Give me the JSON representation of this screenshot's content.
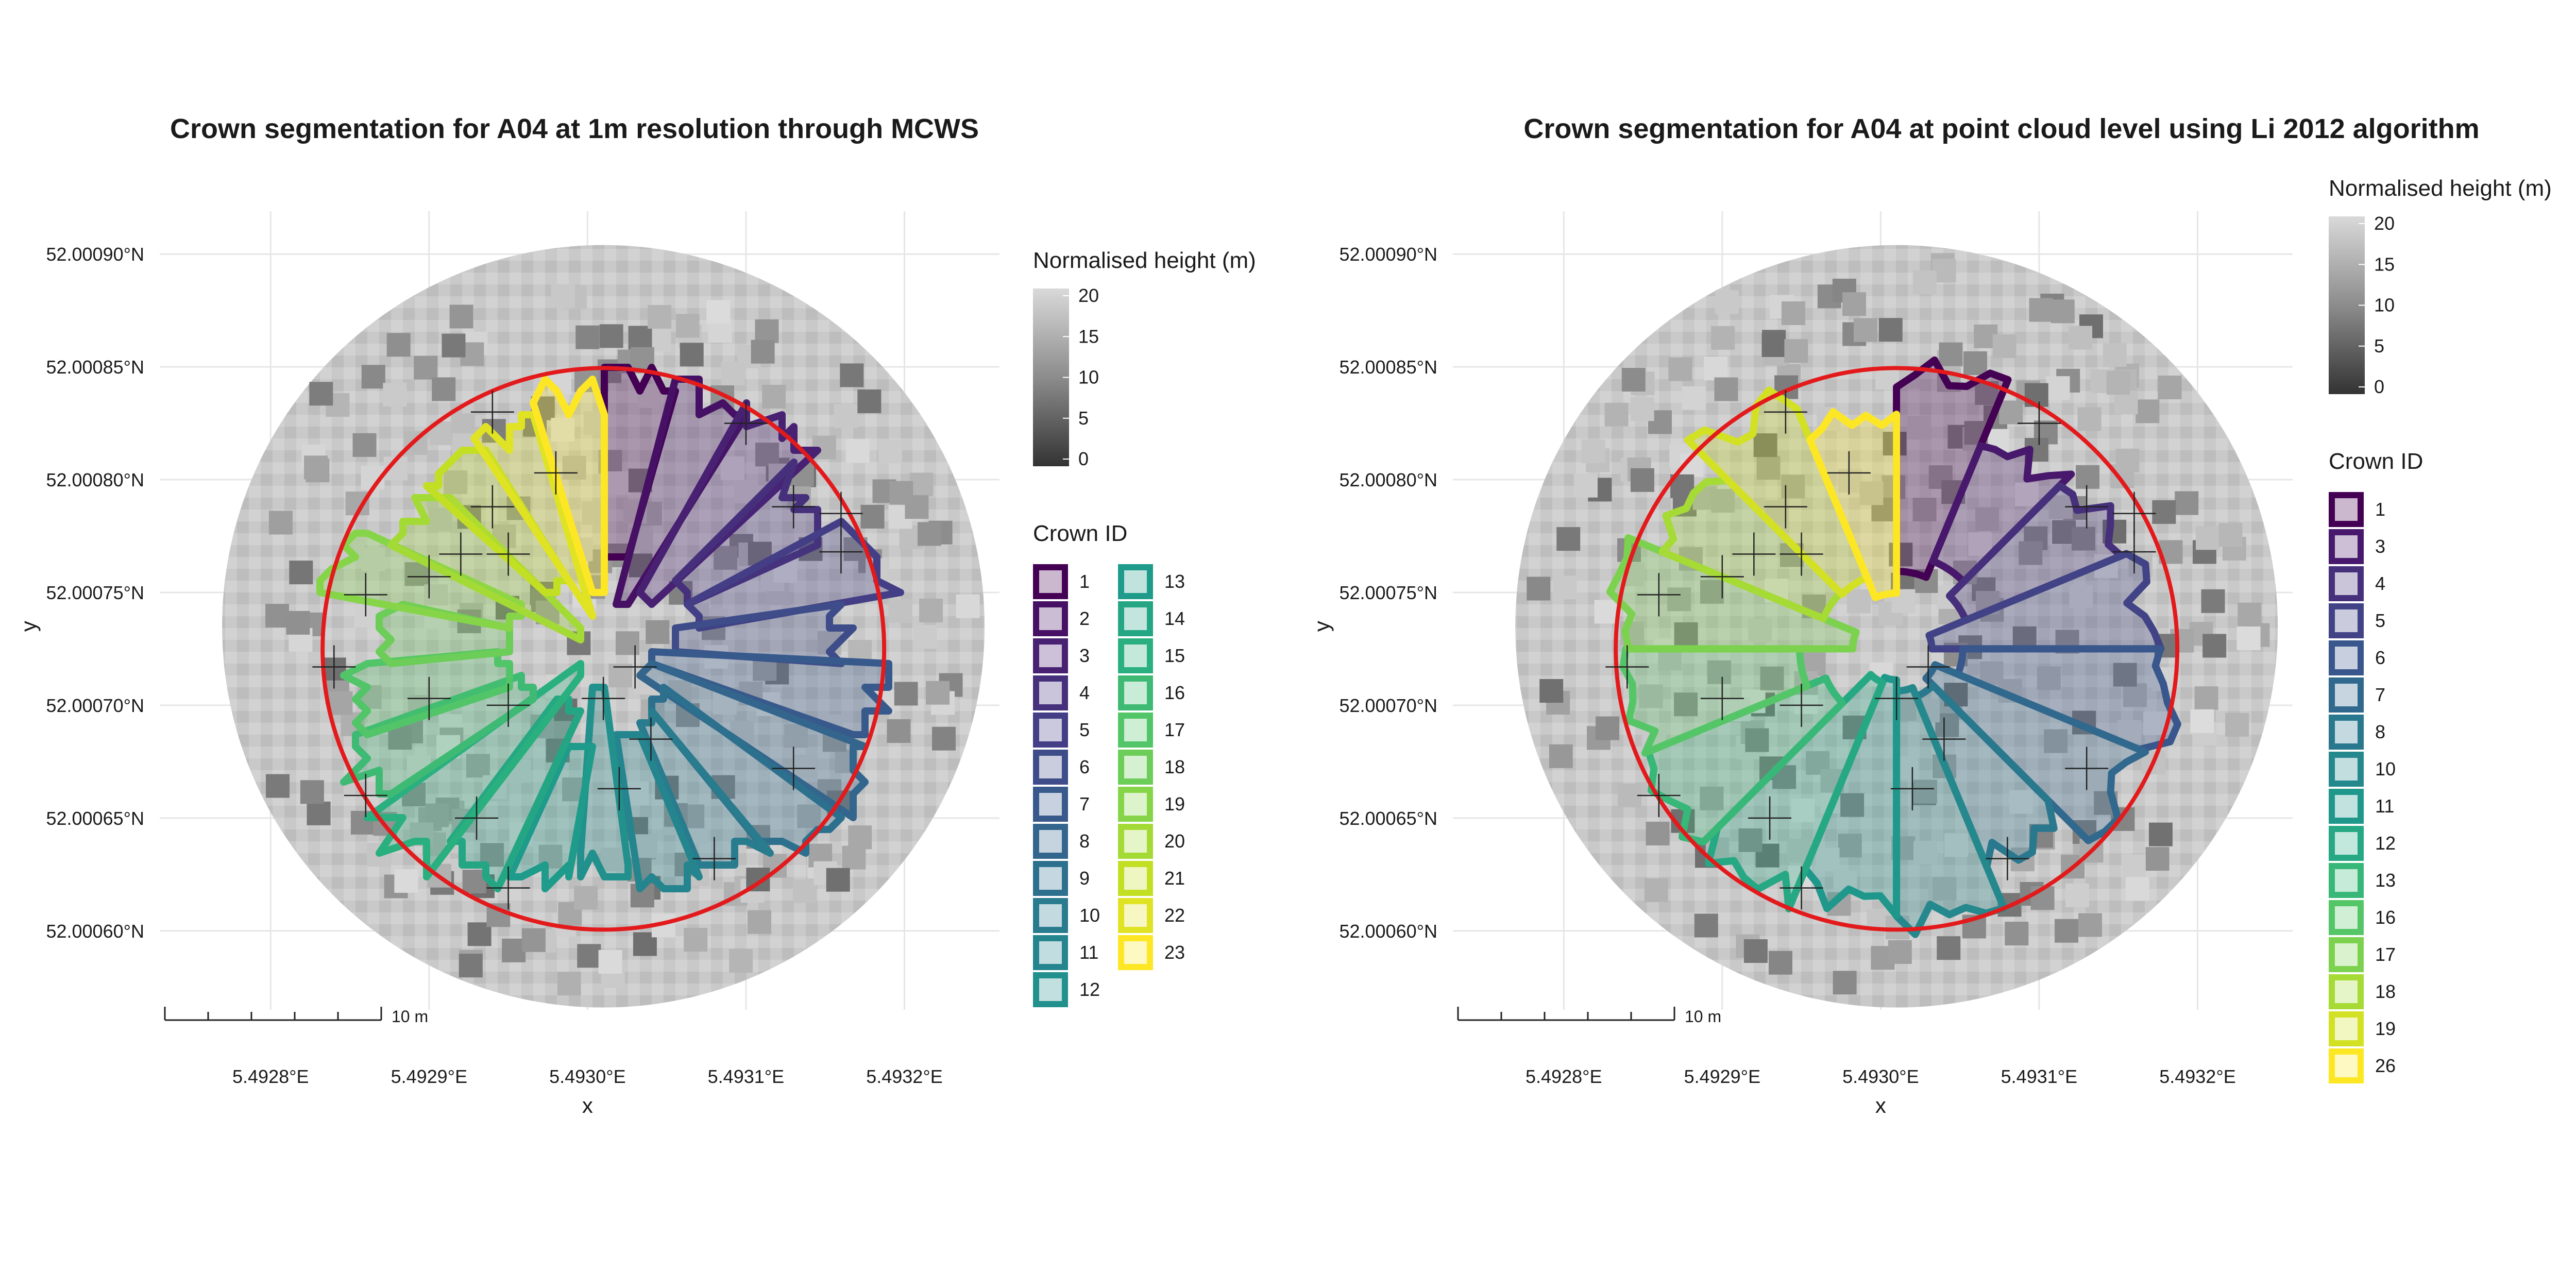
{
  "colors": {
    "background": "#ffffff",
    "gridline": "#e6e6e6",
    "plot_circle": "#e31a1c",
    "crosshair": "#222222",
    "text": "#1a1a1a"
  },
  "chart_data": [
    {
      "type": "map",
      "title": "Crown segmentation for A04 at 1m resolution through MCWS",
      "xlabel": "x",
      "ylabel": "y",
      "x_ticks": [
        "5.4928°E",
        "5.4929°E",
        "5.4930°E",
        "5.4931°E",
        "5.4932°E"
      ],
      "y_ticks": [
        "52.00060°N",
        "52.00065°N",
        "52.00070°N",
        "52.00075°N",
        "52.00080°N",
        "52.00085°N",
        "52.00090°N"
      ],
      "xlim": [
        5.49273,
        5.49326
      ],
      "ylim": [
        52.000565,
        52.000919
      ],
      "scale_bar_label": "10 m",
      "height_legend": {
        "title": "Normalised height (m)",
        "ticks": [
          "20",
          "15",
          "10",
          "5",
          "0"
        ],
        "range": [
          0,
          20
        ]
      },
      "crown_legend": {
        "title": "Crown ID",
        "ids": [
          "1",
          "2",
          "3",
          "4",
          "5",
          "6",
          "7",
          "8",
          "9",
          "10",
          "11",
          "12",
          "13",
          "14",
          "15",
          "16",
          "17",
          "18",
          "19",
          "20",
          "21",
          "22",
          "23"
        ]
      },
      "plot_circle": {
        "center": [
          5.49301,
          52.000725
        ],
        "radius_m": 12.62
      },
      "tree_tops": [
        [
          5.49294,
          52.00083
        ],
        [
          5.4931,
          52.000825
        ],
        [
          5.49298,
          52.000803
        ],
        [
          5.49294,
          52.000788
        ],
        [
          5.49313,
          52.000788
        ],
        [
          5.49316,
          52.000785
        ],
        [
          5.49316,
          52.000768
        ],
        [
          5.49292,
          52.000767
        ],
        [
          5.49295,
          52.000767
        ],
        [
          5.4929,
          52.000757
        ],
        [
          5.49286,
          52.000749
        ],
        [
          5.49284,
          52.000717
        ],
        [
          5.49303,
          52.000717
        ],
        [
          5.4929,
          52.000703
        ],
        [
          5.49295,
          52.0007
        ],
        [
          5.49301,
          52.000703
        ],
        [
          5.49304,
          52.000685
        ],
        [
          5.49313,
          52.000672
        ],
        [
          5.49302,
          52.000663
        ],
        [
          5.49286,
          52.00066
        ],
        [
          5.49293,
          52.00065
        ],
        [
          5.49308,
          52.000632
        ],
        [
          5.49295,
          52.000619
        ]
      ]
    },
    {
      "type": "map",
      "title": "Crown segmentation for A04 at point cloud level using Li 2012 algorithm",
      "xlabel": "x",
      "ylabel": "y",
      "x_ticks": [
        "5.4928°E",
        "5.4929°E",
        "5.4930°E",
        "5.4931°E",
        "5.4932°E"
      ],
      "y_ticks": [
        "52.00060°N",
        "52.00065°N",
        "52.00070°N",
        "52.00075°N",
        "52.00080°N",
        "52.00085°N",
        "52.00090°N"
      ],
      "xlim": [
        5.49273,
        5.49326
      ],
      "ylim": [
        52.000565,
        52.000919
      ],
      "scale_bar_label": "10 m",
      "height_legend": {
        "title": "Normalised height (m)",
        "ticks": [
          "20",
          "15",
          "10",
          "5",
          "0"
        ],
        "range": [
          0,
          20
        ]
      },
      "crown_legend": {
        "title": "Crown ID",
        "ids": [
          "1",
          "3",
          "4",
          "5",
          "6",
          "7",
          "8",
          "10",
          "11",
          "12",
          "13",
          "16",
          "17",
          "18",
          "19",
          "26"
        ]
      },
      "plot_circle": {
        "center": [
          5.49301,
          52.000725
        ],
        "radius_m": 12.62
      },
      "tree_tops": [
        [
          5.49294,
          52.00083
        ],
        [
          5.4931,
          52.000825
        ],
        [
          5.49298,
          52.000803
        ],
        [
          5.49294,
          52.000788
        ],
        [
          5.49313,
          52.000788
        ],
        [
          5.49316,
          52.000785
        ],
        [
          5.49316,
          52.000768
        ],
        [
          5.49292,
          52.000767
        ],
        [
          5.49295,
          52.000767
        ],
        [
          5.4929,
          52.000757
        ],
        [
          5.49286,
          52.000749
        ],
        [
          5.49284,
          52.000717
        ],
        [
          5.49303,
          52.000717
        ],
        [
          5.4929,
          52.000703
        ],
        [
          5.49295,
          52.0007
        ],
        [
          5.49301,
          52.000703
        ],
        [
          5.49304,
          52.000685
        ],
        [
          5.49313,
          52.000672
        ],
        [
          5.49302,
          52.000663
        ],
        [
          5.49286,
          52.00066
        ],
        [
          5.49293,
          52.00065
        ],
        [
          5.49308,
          52.000632
        ],
        [
          5.49295,
          52.000619
        ]
      ]
    }
  ]
}
